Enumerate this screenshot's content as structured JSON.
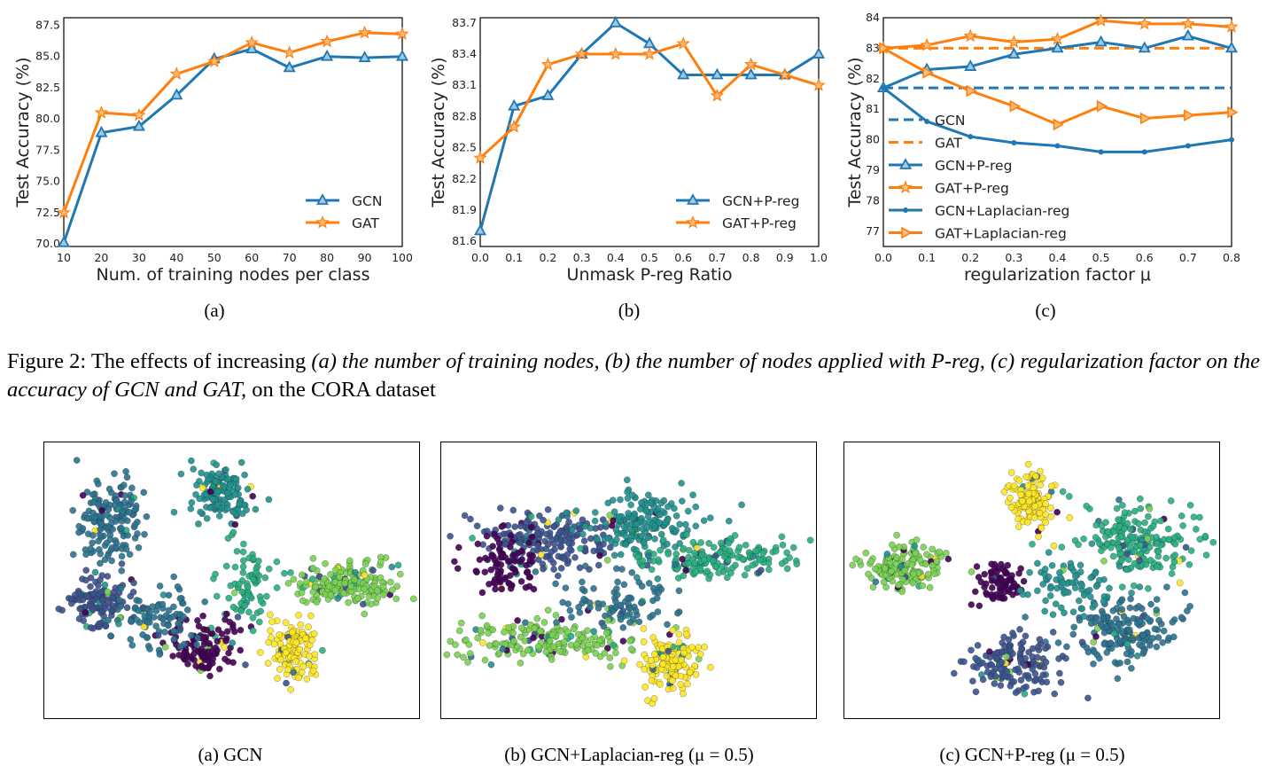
{
  "colors": {
    "gcn": "#1f77b4",
    "gat": "#ff7f0e"
  },
  "chart_data": [
    {
      "id": "a",
      "type": "line",
      "xlabel": "Num. of training nodes per class",
      "ylabel": "Test Accuracy (%)",
      "x": [
        10,
        20,
        30,
        40,
        50,
        60,
        70,
        80,
        90,
        100
      ],
      "xticks": [
        "10",
        "20",
        "30",
        "40",
        "50",
        "60",
        "70",
        "80",
        "90",
        "100"
      ],
      "yticks": [
        "70.0",
        "72.5",
        "75.0",
        "77.5",
        "80.0",
        "82.5",
        "85.0",
        "87.5"
      ],
      "xlim": [
        10,
        100
      ],
      "ylim": [
        69.8,
        88.1
      ],
      "grid": false,
      "legend_position": "bottom-right",
      "series": [
        {
          "name": "GCN",
          "marker": "triangle",
          "color": "#1f77b4",
          "values": [
            70.1,
            78.9,
            79.4,
            81.9,
            84.8,
            85.6,
            84.1,
            85.0,
            84.9,
            85.0
          ]
        },
        {
          "name": "GAT",
          "marker": "star",
          "color": "#ff7f0e",
          "values": [
            72.5,
            80.5,
            80.3,
            83.6,
            84.6,
            86.1,
            85.3,
            86.2,
            86.9,
            86.8
          ]
        }
      ]
    },
    {
      "id": "b",
      "type": "line",
      "xlabel": "Unmask P-reg Ratio",
      "ylabel": "Test Accuracy (%)",
      "x": [
        0.0,
        0.1,
        0.2,
        0.3,
        0.4,
        0.5,
        0.6,
        0.7,
        0.8,
        0.9,
        1.0
      ],
      "xticks": [
        "0.0",
        "0.1",
        "0.2",
        "0.3",
        "0.4",
        "0.5",
        "0.6",
        "0.7",
        "0.8",
        "0.9",
        "1.0"
      ],
      "yticks": [
        "81.6",
        "81.9",
        "82.2",
        "82.5",
        "82.8",
        "83.1",
        "83.4",
        "83.7"
      ],
      "xlim": [
        0.0,
        1.0
      ],
      "ylim": [
        81.55,
        83.75
      ],
      "grid": false,
      "legend_position": "bottom-right",
      "series": [
        {
          "name": "GCN+P-reg",
          "marker": "triangle",
          "color": "#1f77b4",
          "values": [
            81.7,
            82.9,
            83.0,
            83.4,
            83.7,
            83.5,
            83.2,
            83.2,
            83.2,
            83.2,
            83.4
          ]
        },
        {
          "name": "GAT+P-reg",
          "marker": "star",
          "color": "#ff7f0e",
          "values": [
            82.4,
            82.7,
            83.3,
            83.4,
            83.4,
            83.4,
            83.5,
            83.0,
            83.3,
            83.2,
            83.1
          ]
        }
      ]
    },
    {
      "id": "c",
      "type": "line",
      "xlabel": "regularization factor μ",
      "ylabel": "Test Accuracy (%)",
      "x": [
        0.0,
        0.1,
        0.2,
        0.3,
        0.4,
        0.5,
        0.6,
        0.7,
        0.8
      ],
      "xticks": [
        "0.0",
        "0.1",
        "0.2",
        "0.3",
        "0.4",
        "0.5",
        "0.6",
        "0.7",
        "0.8"
      ],
      "yticks": [
        "77",
        "78",
        "79",
        "80",
        "81",
        "82",
        "83",
        "84"
      ],
      "xlim": [
        0.0,
        0.8
      ],
      "ylim": [
        76.5,
        84.0
      ],
      "grid": false,
      "legend_position": "bottom-left",
      "series": [
        {
          "name": "GCN",
          "style": "dashed",
          "marker": "none",
          "color": "#1f77b4",
          "values": [
            81.7,
            81.7,
            81.7,
            81.7,
            81.7,
            81.7,
            81.7,
            81.7,
            81.7
          ]
        },
        {
          "name": "GAT",
          "style": "dashed",
          "marker": "none",
          "color": "#ff7f0e",
          "values": [
            83.0,
            83.0,
            83.0,
            83.0,
            83.0,
            83.0,
            83.0,
            83.0,
            83.0
          ]
        },
        {
          "name": "GCN+P-reg",
          "marker": "triangle",
          "color": "#1f77b4",
          "values": [
            81.7,
            82.3,
            82.4,
            82.8,
            83.0,
            83.2,
            83.0,
            83.4,
            83.0
          ]
        },
        {
          "name": "GAT+P-reg",
          "marker": "star",
          "color": "#ff7f0e",
          "values": [
            83.0,
            83.1,
            83.4,
            83.2,
            83.3,
            83.9,
            83.8,
            83.8,
            83.7
          ]
        },
        {
          "name": "GCN+Laplacian-reg",
          "marker": "dot",
          "color": "#1f77b4",
          "values": [
            81.7,
            80.6,
            80.1,
            79.9,
            79.8,
            79.6,
            79.6,
            79.8,
            80.0
          ]
        },
        {
          "name": "GAT+Laplacian-reg",
          "marker": "tri-right",
          "color": "#ff7f0e",
          "values": [
            83.0,
            82.2,
            81.6,
            81.1,
            80.5,
            81.1,
            80.7,
            80.8,
            80.9
          ]
        }
      ]
    }
  ],
  "sublabels": [
    "(a)",
    "(b)",
    "(c)"
  ],
  "caption": {
    "prefix": "Figure 2: The effects of increasing ",
    "italic": "(a) the number of training nodes, (b) the number of nodes applied with P-reg, (c) regularization factor on the accuracy of GCN and GAT,",
    "suffix": " on the CORA dataset"
  },
  "tsne": {
    "palette": [
      "#440154",
      "#3b528b",
      "#2c728e",
      "#21918c",
      "#28ae80",
      "#7ad151",
      "#fde725"
    ],
    "captions": [
      "(a) GCN",
      "(b) GCN+Laplacian-reg (μ = 0.5)",
      "(c) GCN+P-reg (μ = 0.5)"
    ]
  }
}
